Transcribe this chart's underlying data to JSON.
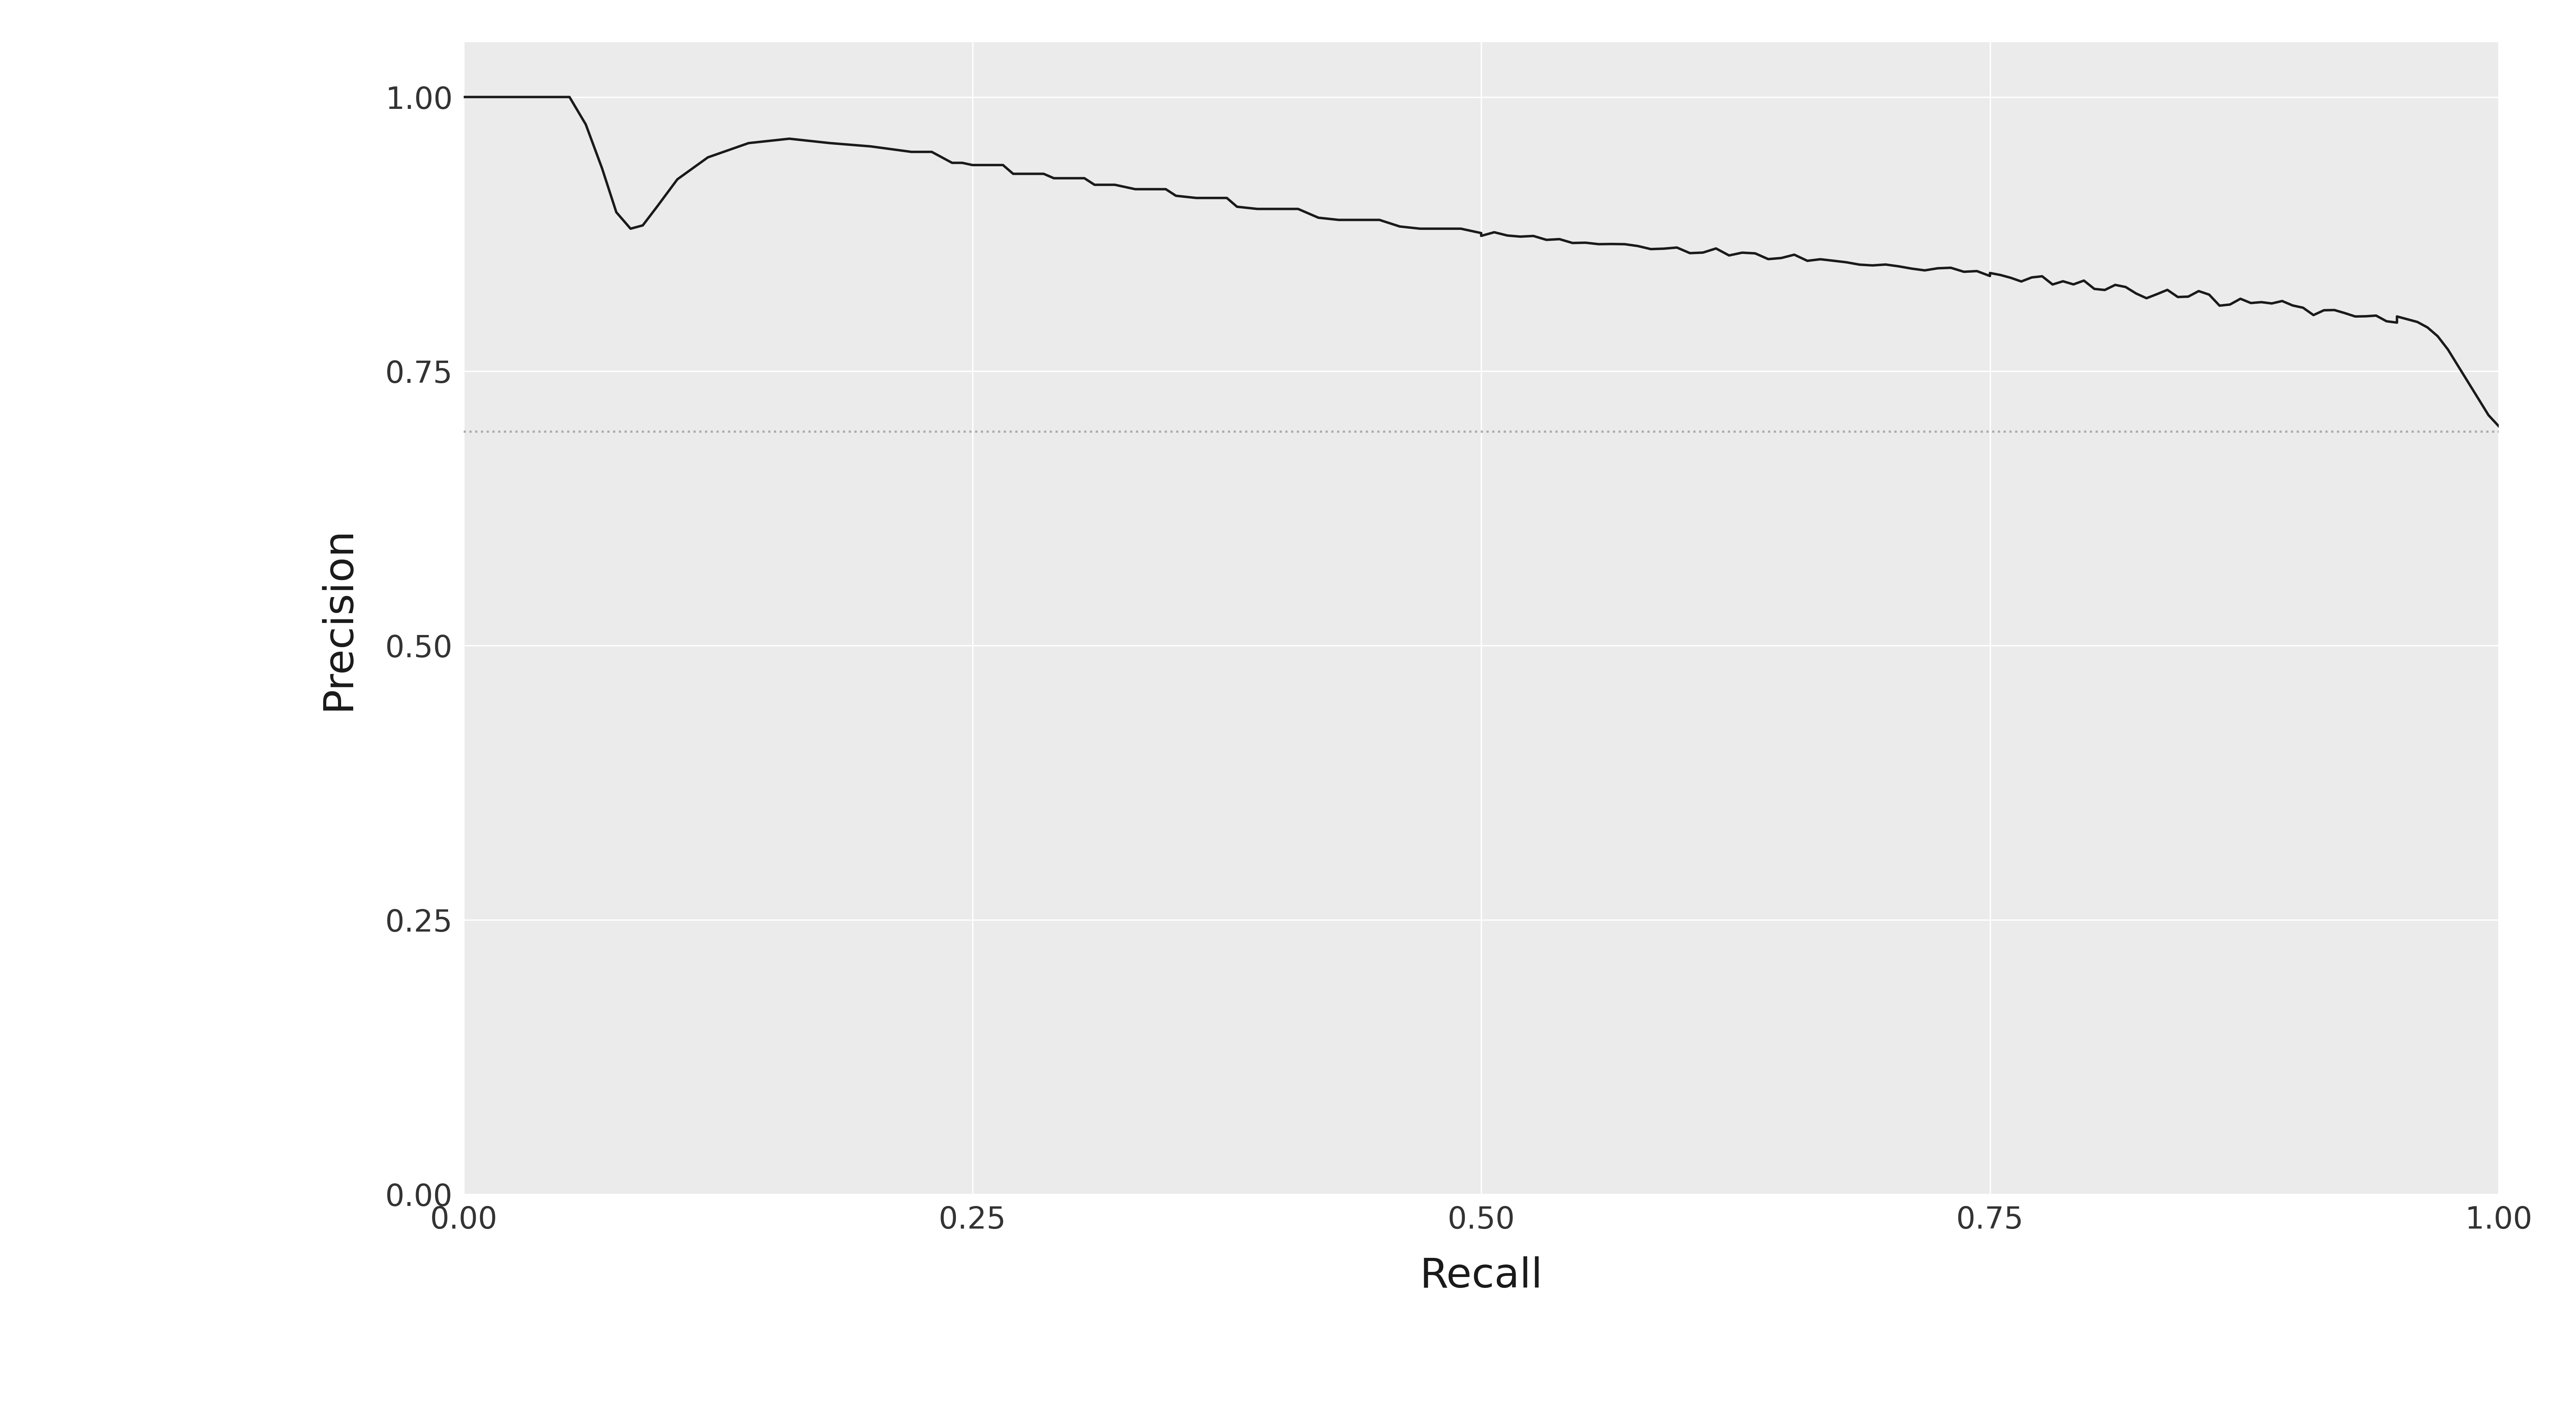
{
  "xlabel": "Recall",
  "ylabel": "Precision",
  "xlim": [
    0.0,
    1.0
  ],
  "ylim": [
    0.0,
    1.05
  ],
  "hline_y": 0.695,
  "hline_color": "#aaaaaa",
  "hline_style": "dotted",
  "hline_lw": 4.0,
  "curve_color": "#1a1a1a",
  "curve_lw": 4.5,
  "background_color": "#ffffff",
  "panel_color": "#ebebeb",
  "grid_color": "#ffffff",
  "tick_label_fontsize": 56,
  "axis_label_fontsize": 76,
  "xticks": [
    0.0,
    0.25,
    0.5,
    0.75,
    1.0
  ],
  "yticks": [
    0.0,
    0.25,
    0.5,
    0.75,
    1.0
  ],
  "figsize": [
    66,
    36
  ]
}
